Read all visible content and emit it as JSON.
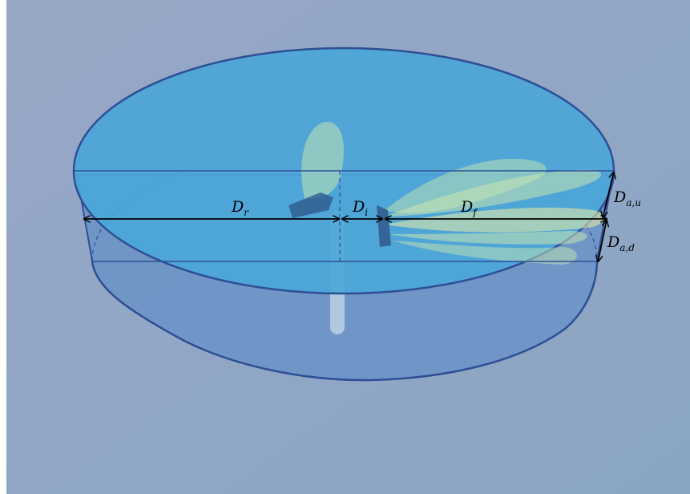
{
  "labels": {
    "Dr": {
      "main": "D",
      "sub": "r"
    },
    "Di": {
      "main": "D",
      "sub": "i"
    },
    "Df": {
      "main": "D",
      "sub": "f"
    },
    "Dau": {
      "main": "D",
      "sub": "a,u"
    },
    "Dad": {
      "main": "D",
      "sub": "a,d"
    }
  },
  "colors": {
    "background": "#8fa3c0",
    "top_surface": "#4aa8d8",
    "cylinder_side": "#6b93c2",
    "outline": "#2e4f96",
    "plant": "#b9e0b4",
    "arrow": "#000000"
  }
}
